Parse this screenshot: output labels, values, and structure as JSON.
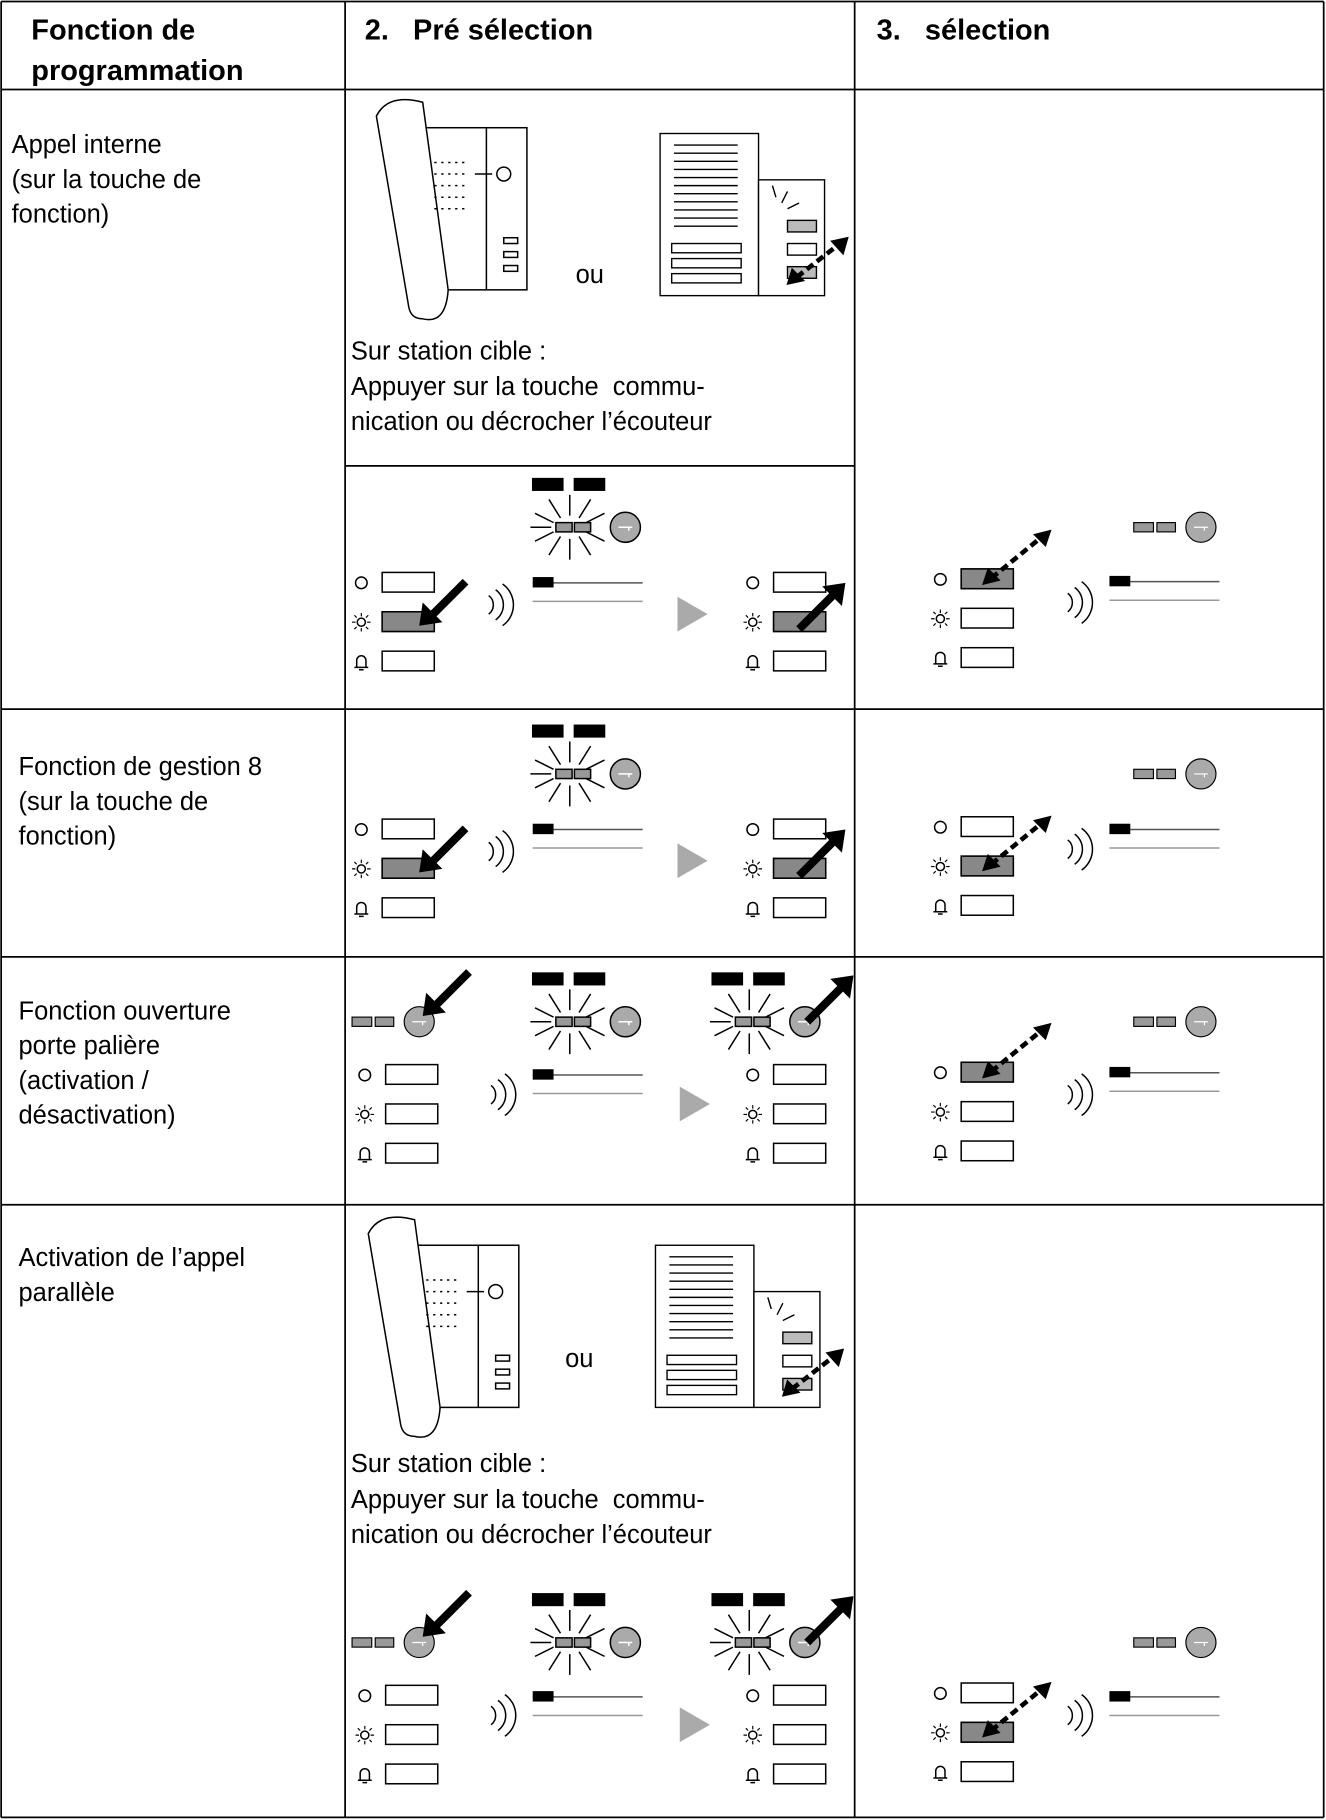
{
  "header": {
    "function": [
      "Fonction de",
      "programmation"
    ],
    "preselection": "2.   Pré sélection",
    "selection": "3.   sélection"
  },
  "rows": [
    {
      "label": [
        "Appel interne",
        "(sur la touche de",
        "fonction)"
      ],
      "or": "ou",
      "instruction": [
        "Sur station cible :",
        "Appuyer sur la touche  commu-",
        "nication ou décrocher l’écouteur"
      ]
    },
    {
      "label": [
        "Fonction de gestion 8",
        "(sur la touche de",
        "fonction)"
      ]
    },
    {
      "label": [
        "Fonction ouverture",
        "porte palière",
        "(activation /",
        "désactivation)"
      ]
    },
    {
      "label": [
        "Activation de l’appel",
        "parallèle"
      ],
      "or": "ou",
      "instruction": [
        "Sur station cible :",
        "Appuyer sur la touche  commu-",
        "nication ou décrocher l’écouteur"
      ]
    }
  ]
}
